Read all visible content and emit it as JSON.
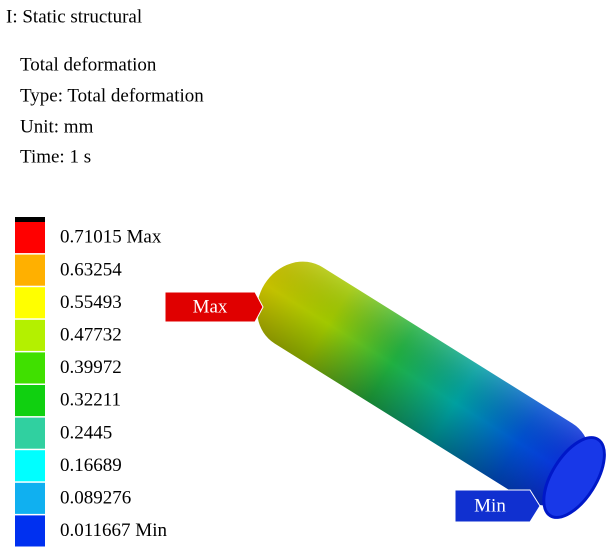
{
  "header": {
    "analysis": "I: Static structural",
    "result": "Total deformation",
    "type": "Type: Total deformation",
    "unit": "Unit: mm",
    "time": "Time: 1 s"
  },
  "legend": {
    "labels": [
      "0.71015 Max",
      "0.63254",
      "0.55493",
      "0.47732",
      "0.39972",
      "0.32211",
      "0.2445",
      "0.16689",
      "0.089276",
      "0.011667 Min"
    ],
    "colors": [
      "#ff0000",
      "#ffb000",
      "#ffff00",
      "#b4f000",
      "#40e000",
      "#10d010",
      "#30d0a0",
      "#00ffff",
      "#10b0f0",
      "#0030f0"
    ]
  },
  "probes": {
    "max": "Max",
    "min": "Min"
  }
}
